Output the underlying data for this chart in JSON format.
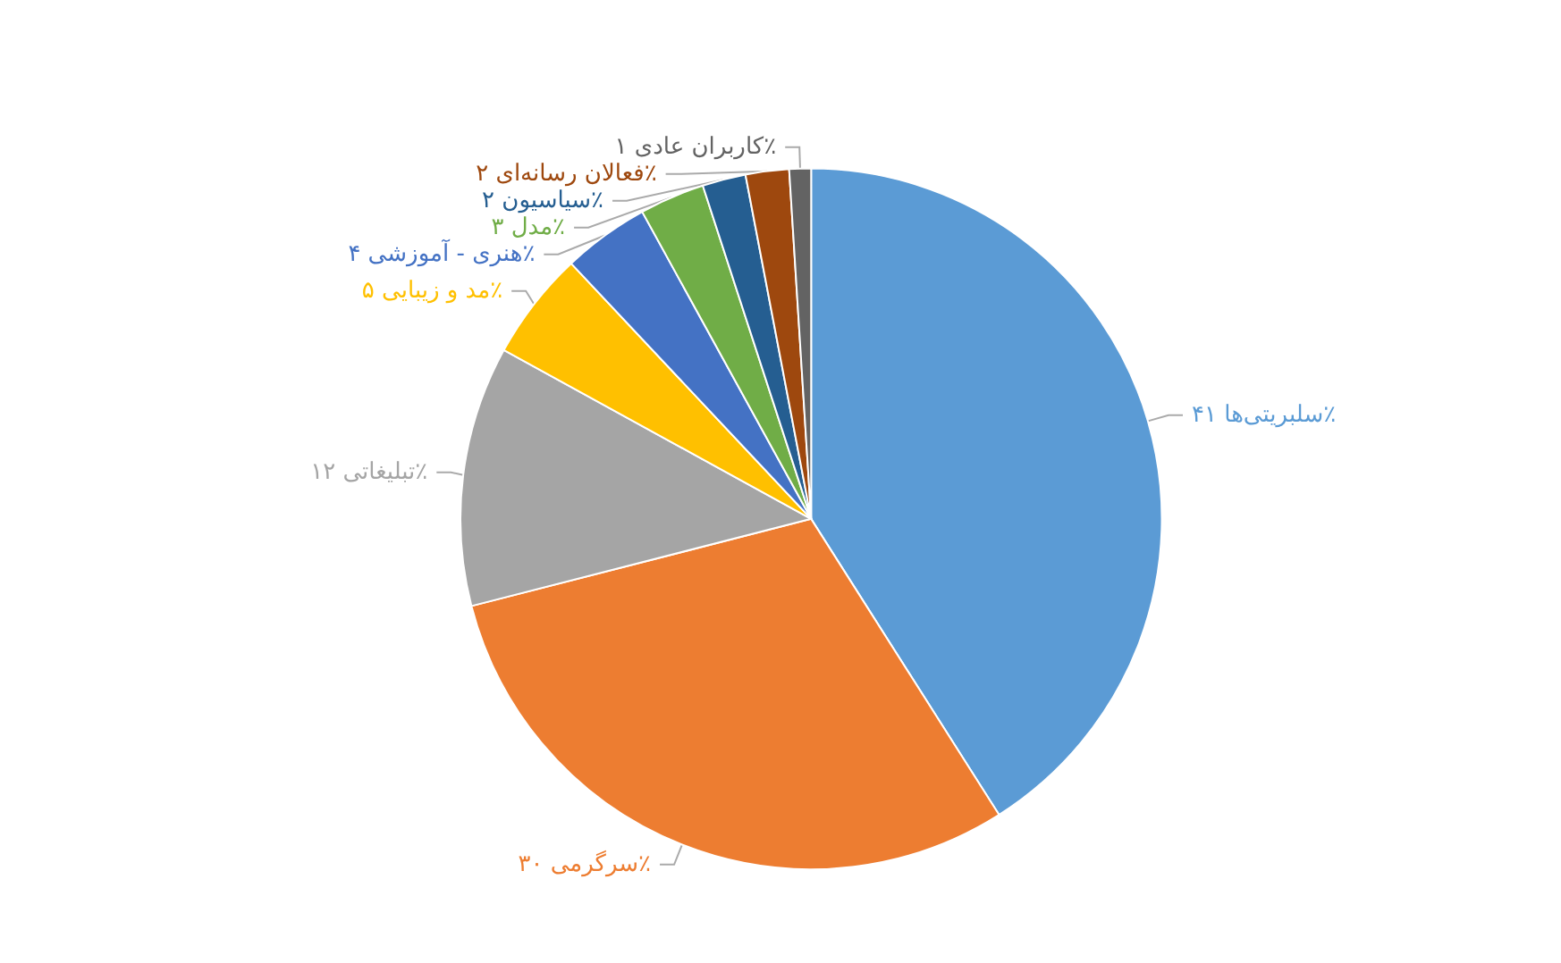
{
  "chart_data": {
    "type": "pie",
    "categories": [
      "سلبریتی‌ها",
      "سرگرمی",
      "تبلیغاتی",
      "مد و زیبایی",
      "هنری - آموزشی",
      "مدل",
      "سیاسیون",
      "فعالان رسانه‌ای",
      "کاربران عادی"
    ],
    "values": [
      41,
      30,
      12,
      5,
      4,
      3,
      2,
      2,
      1
    ],
    "value_labels": [
      "۴۱٪",
      "۳۰٪",
      "۱۲٪",
      "۵٪",
      "۴٪",
      "۳٪",
      "۲٪",
      "۲٪",
      "۱٪"
    ],
    "colors": [
      "#5b9bd5",
      "#ed7d31",
      "#a5a5a5",
      "#ffc000",
      "#4472c4",
      "#70ad47",
      "#255e91",
      "#9e480e",
      "#636363"
    ],
    "legend": false
  }
}
